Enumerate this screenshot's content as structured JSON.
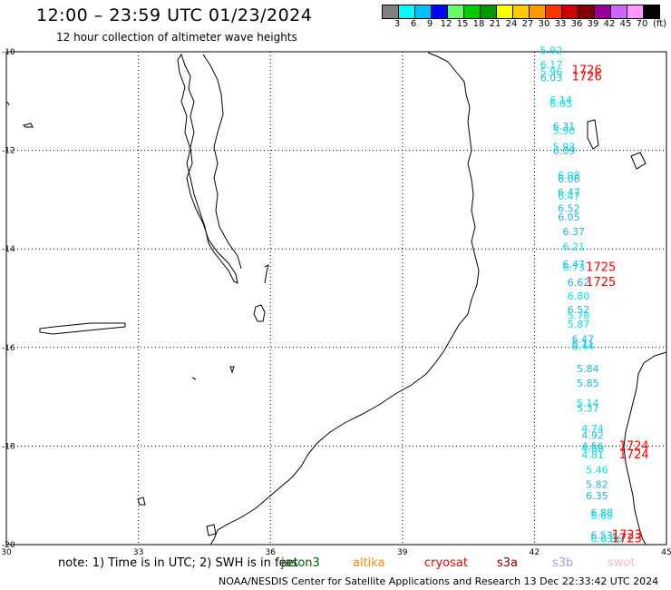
{
  "header": {
    "title": "12:00 – 23:59 UTC 01/23/2024",
    "subtitle": "12 hour collection of altimeter wave heights"
  },
  "colorbar": {
    "unit": "(ft)",
    "labels": [
      "3",
      "6",
      "9",
      "12",
      "15",
      "18",
      "21",
      "24",
      "27",
      "30",
      "33",
      "36",
      "39",
      "42",
      "45",
      "70"
    ],
    "colors": [
      "#808080",
      "#00ffff",
      "#00bfff",
      "#0000ff",
      "#66ff66",
      "#00cc00",
      "#009900",
      "#ffff00",
      "#ffcc00",
      "#ff9900",
      "#ff3300",
      "#cc0000",
      "#800000",
      "#990099",
      "#cc66ff",
      "#ff99ff",
      "#000000"
    ]
  },
  "map": {
    "lon_labels": [
      "30",
      "33",
      "36",
      "39",
      "42",
      "45"
    ],
    "lat_labels": [
      "-10",
      "-12",
      "-14",
      "-16",
      "-18",
      "-20"
    ],
    "lon_range": [
      30,
      45
    ],
    "lat_range": [
      -20,
      -10
    ],
    "swh_colors": {
      "light": "#00e5ee",
      "mid": "#1ab8e0"
    },
    "orbit_colors": {
      "red": "#ff0000"
    },
    "observations": [
      {
        "v": "5.92",
        "lon": 42.13,
        "lat": -10.05,
        "c": "light"
      },
      {
        "v": "6.17",
        "lon": 42.13,
        "lat": -10.33,
        "c": "light"
      },
      {
        "v": "5.96",
        "lon": 42.13,
        "lat": -10.48,
        "c": "light"
      },
      {
        "v": "6.03",
        "lon": 42.13,
        "lat": -10.6,
        "c": "mid"
      },
      {
        "v": "6.14",
        "lon": 42.35,
        "lat": -11.05,
        "c": "light"
      },
      {
        "v": "6.03",
        "lon": 42.35,
        "lat": -11.12,
        "c": "light"
      },
      {
        "v": "6.31",
        "lon": 42.42,
        "lat": -11.58,
        "c": "mid"
      },
      {
        "v": "5.90",
        "lon": 42.42,
        "lat": -11.68,
        "c": "light"
      },
      {
        "v": "5.93",
        "lon": 42.42,
        "lat": -12.0,
        "c": "light"
      },
      {
        "v": "6.09",
        "lon": 42.42,
        "lat": -12.08,
        "c": "mid"
      },
      {
        "v": "6.08",
        "lon": 42.53,
        "lat": -12.58,
        "c": "light"
      },
      {
        "v": "6.06",
        "lon": 42.53,
        "lat": -12.65,
        "c": "mid"
      },
      {
        "v": "6.47",
        "lon": 42.53,
        "lat": -12.92,
        "c": "mid"
      },
      {
        "v": "6.47",
        "lon": 42.53,
        "lat": -13.0,
        "c": "light"
      },
      {
        "v": "6.52",
        "lon": 42.53,
        "lat": -13.25,
        "c": "mid"
      },
      {
        "v": "6.05",
        "lon": 42.53,
        "lat": -13.43,
        "c": "mid"
      },
      {
        "v": "6.37",
        "lon": 42.64,
        "lat": -13.72,
        "c": "mid"
      },
      {
        "v": "6.21",
        "lon": 42.64,
        "lat": -14.02,
        "c": "light"
      },
      {
        "v": "6.47",
        "lon": 42.64,
        "lat": -14.38,
        "c": "mid"
      },
      {
        "v": "6.73",
        "lon": 42.64,
        "lat": -14.45,
        "c": "light"
      },
      {
        "v": "6.62",
        "lon": 42.75,
        "lat": -14.75,
        "c": "mid"
      },
      {
        "v": "6.80",
        "lon": 42.75,
        "lat": -15.03,
        "c": "light"
      },
      {
        "v": "6.52",
        "lon": 42.75,
        "lat": -15.3,
        "c": "mid"
      },
      {
        "v": "5.78",
        "lon": 42.75,
        "lat": -15.42,
        "c": "light"
      },
      {
        "v": "5.87",
        "lon": 42.75,
        "lat": -15.6,
        "c": "light"
      },
      {
        "v": "6.47",
        "lon": 42.85,
        "lat": -15.9,
        "c": "mid"
      },
      {
        "v": "6.11",
        "lon": 42.85,
        "lat": -16.0,
        "c": "mid"
      },
      {
        "v": "6.44",
        "lon": 42.85,
        "lat": -16.05,
        "c": "light"
      },
      {
        "v": "5.84",
        "lon": 42.96,
        "lat": -16.5,
        "c": "mid"
      },
      {
        "v": "5.85",
        "lon": 42.96,
        "lat": -16.8,
        "c": "mid"
      },
      {
        "v": "5.14",
        "lon": 42.96,
        "lat": -17.2,
        "c": "light"
      },
      {
        "v": "5.37",
        "lon": 42.96,
        "lat": -17.3,
        "c": "mid"
      },
      {
        "v": "4.74",
        "lon": 43.07,
        "lat": -17.72,
        "c": "light"
      },
      {
        "v": "4.92",
        "lon": 43.07,
        "lat": -17.85,
        "c": "mid"
      },
      {
        "v": "4.56",
        "lon": 43.07,
        "lat": -18.08,
        "c": "mid"
      },
      {
        "v": "4.68",
        "lon": 43.07,
        "lat": -18.12,
        "c": "light"
      },
      {
        "v": "4.81",
        "lon": 43.07,
        "lat": -18.25,
        "c": "light"
      },
      {
        "v": "5.46",
        "lon": 43.17,
        "lat": -18.55,
        "c": "light"
      },
      {
        "v": "5.82",
        "lon": 43.17,
        "lat": -18.85,
        "c": "mid"
      },
      {
        "v": "6.35",
        "lon": 43.17,
        "lat": -19.08,
        "c": "mid"
      },
      {
        "v": "6.88",
        "lon": 43.28,
        "lat": -19.42,
        "c": "mid"
      },
      {
        "v": "6.69",
        "lon": 43.28,
        "lat": -19.48,
        "c": "light"
      },
      {
        "v": "6.53",
        "lon": 43.28,
        "lat": -19.88,
        "c": "mid"
      },
      {
        "v": "6.63",
        "lon": 43.28,
        "lat": -19.95,
        "c": "light"
      },
      {
        "v": "6.86",
        "lon": 43.5,
        "lat": -19.95,
        "c": "light"
      }
    ],
    "orbit_labels": [
      {
        "v": "1726",
        "lon": 42.85,
        "lat": -10.45
      },
      {
        "v": "1726",
        "lon": 42.85,
        "lat": -10.58
      },
      {
        "v": "1725",
        "lon": 43.17,
        "lat": -14.45
      },
      {
        "v": "1725",
        "lon": 43.17,
        "lat": -14.75
      },
      {
        "v": "1724",
        "lon": 43.92,
        "lat": -18.08
      },
      {
        "v": "1724",
        "lon": 43.92,
        "lat": -18.25
      },
      {
        "v": "1723",
        "lon": 43.76,
        "lat": -19.88
      },
      {
        "v": "1723",
        "lon": 43.76,
        "lat": -19.95
      }
    ]
  },
  "note": {
    "text": "note:  1) Time is in UTC; 2) SWH is in feet",
    "satellites": [
      {
        "name": "jason3",
        "color": "#006400"
      },
      {
        "name": "altika",
        "color": "#ff8c00"
      },
      {
        "name": "cryosat",
        "color": "#ff0000"
      },
      {
        "name": "s3a",
        "color": "#8b0000"
      },
      {
        "name": "s3b",
        "color": "#b19cd9"
      },
      {
        "name": "swot",
        "color": "#ffb6c1"
      }
    ]
  },
  "footer": {
    "text": "NOAA/NESDIS Center for Satellite Applications and Research    13 Dec 22:33:42 UTC 2024"
  }
}
